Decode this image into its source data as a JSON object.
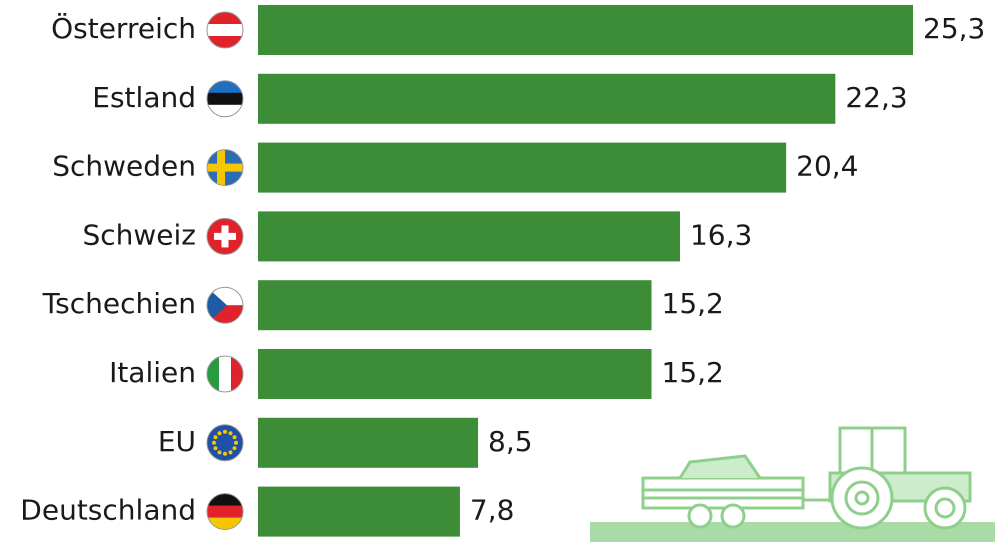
{
  "chart_data": {
    "type": "bar",
    "orientation": "horizontal",
    "categories": [
      "Österreich",
      "Estland",
      "Schweden",
      "Schweiz",
      "Tschechien",
      "Italien",
      "EU",
      "Deutschland"
    ],
    "values": [
      25.3,
      22.3,
      20.4,
      16.3,
      15.2,
      15.2,
      8.5,
      7.8
    ],
    "value_labels": [
      "25,3",
      "22,3",
      "20,4",
      "16,3",
      "15,2",
      "15,2",
      "8,5",
      "7,8"
    ],
    "color": "#3d8c37"
  }
}
